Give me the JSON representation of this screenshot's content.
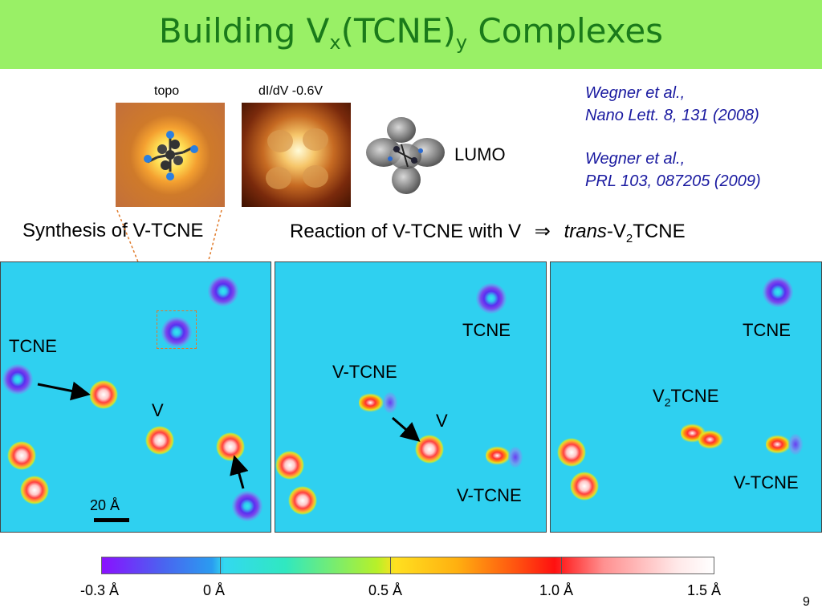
{
  "slide": {
    "title_main": "Building V",
    "title_sub_x": "x",
    "title_mid": "(TCNE)",
    "title_sub_y": "y",
    "title_end": " Complexes",
    "page_number": "9"
  },
  "insets": {
    "topo_label": "topo",
    "didv_label": "dI/dV -0.6V",
    "lumo_label": "LUMO"
  },
  "references": [
    {
      "line1": "Wegner et al.,",
      "line2": "Nano Lett. 8, 131 (2008)"
    },
    {
      "line1": "Wegner et al.,",
      "line2": "PRL 103, 087205 (2009)"
    }
  ],
  "captions": {
    "left": "Synthesis of V-TCNE",
    "right_prefix": "Reaction of V-TCNE with V",
    "right_arrow": "⇒",
    "right_trans": "trans",
    "right_v": "-V",
    "right_sub": "2",
    "right_end": "TCNE"
  },
  "panels": {
    "p1": {
      "tcne": "TCNE",
      "v": "V",
      "scale": "20 Å"
    },
    "p2": {
      "tcne": "TCNE",
      "vtcne_top": "V-TCNE",
      "v": "V",
      "vtcne_bottom": "V-TCNE"
    },
    "p3": {
      "tcne": "TCNE",
      "v2": "V",
      "v2_sub": "2",
      "v2_end": "TCNE",
      "vtcne": "V-TCNE"
    }
  },
  "colorbar": {
    "labels": [
      "-0.3 Å",
      "0 Å",
      "0.5 Å",
      "1.0 Å",
      "1.5 Å"
    ]
  },
  "colors": {
    "title_bg": "#99f066",
    "title_text": "#1a7a1a",
    "reference_text": "#1a1aa0",
    "stm_background": "#2fd0f0"
  }
}
